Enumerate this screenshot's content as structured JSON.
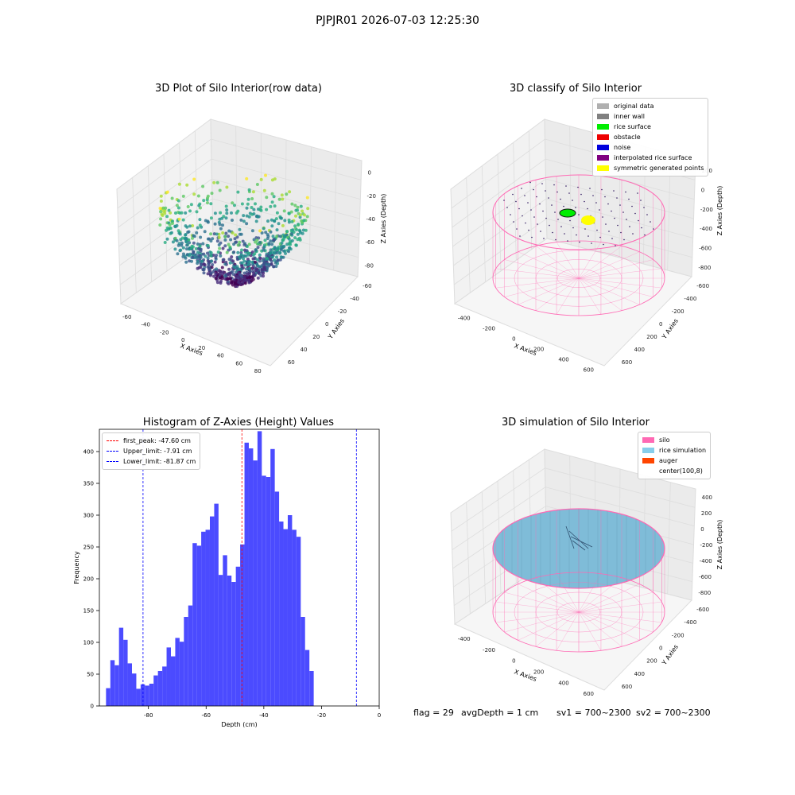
{
  "suptitle": "PJPJR01 2026-07-03 12:25:30",
  "chart_data": [
    {
      "type": "scatter",
      "title": "3D Plot of Silo Interior(row data)",
      "xlabel": "X Axies",
      "ylabel": "Y Axies",
      "zlabel": "Z Axies (Depth)",
      "x_ticks": [
        "-60",
        "-40",
        "-20",
        "0",
        "20",
        "40",
        "60",
        "80"
      ],
      "y_ticks": [
        "60",
        "40",
        "20",
        "0",
        "-20",
        "-40",
        "-60"
      ],
      "z_ticks": [
        "0",
        "-20",
        "-40",
        "-60",
        "-80"
      ],
      "xlim": [
        -70,
        85
      ],
      "ylim": [
        -65,
        65
      ],
      "zlim": [
        -95,
        0
      ],
      "colormap": "viridis",
      "grid": true
    },
    {
      "type": "scatter",
      "title": "3D classify of Silo Interior",
      "xlabel": "X Axies",
      "ylabel": "Y Axies",
      "zlabel": "Z Axies (Depth)",
      "x_ticks": [
        "-400",
        "-200",
        "0",
        "200",
        "400",
        "600"
      ],
      "y_ticks": [
        "600",
        "400",
        "200",
        "0",
        "-200",
        "-400",
        "-600"
      ],
      "z_ticks": [
        "200",
        "0",
        "-200",
        "-400",
        "-600",
        "-800"
      ],
      "legend_position": "top-right",
      "legend": [
        {
          "label": "original data",
          "color": "#b0b0b0"
        },
        {
          "label": "inner wall",
          "color": "#808080"
        },
        {
          "label": "rice surface",
          "color": "#00ee00"
        },
        {
          "label": "obstacle",
          "color": "#ee0000"
        },
        {
          "label": "noise",
          "color": "#0000dd"
        },
        {
          "label": "interpolated rice surface",
          "color": "#800080"
        },
        {
          "label": "symmetric generated points",
          "color": "#ffff00"
        }
      ],
      "grid": true
    },
    {
      "type": "bar",
      "title": "Histogram of Z-Axies (Height) Values",
      "xlabel": "Depth (cm)",
      "ylabel": "Frequency",
      "xlim": [
        -97,
        0
      ],
      "ylim": [
        0,
        435
      ],
      "x_ticks": [
        -80,
        -60,
        -40,
        -20,
        0
      ],
      "y_ticks": [
        0,
        50,
        100,
        150,
        200,
        250,
        300,
        350,
        400
      ],
      "bin_start": -94.7,
      "bin_width": 1.5,
      "values": [
        28,
        72,
        64,
        123,
        104,
        67,
        51,
        27,
        34,
        32,
        35,
        48,
        55,
        62,
        92,
        78,
        107,
        101,
        140,
        158,
        256,
        252,
        274,
        277,
        298,
        318,
        206,
        237,
        205,
        195,
        219,
        254,
        414,
        405,
        386,
        432,
        362,
        360,
        404,
        337,
        290,
        278,
        300,
        277,
        266,
        140,
        88,
        55
      ],
      "bar_color": "#4b4bff",
      "vlines": [
        {
          "label": "first_peak: -47.60 cm",
          "x": -47.6,
          "color": "#ff0000"
        },
        {
          "label": "Upper_limit: -7.91 cm",
          "x": -7.91,
          "color": "#0000ff"
        },
        {
          "label": "Lower_limit: -81.87 cm",
          "x": -81.87,
          "color": "#0000ff"
        }
      ],
      "legend_position": "top-left"
    },
    {
      "type": "scatter",
      "title": "3D simulation of Silo Interior",
      "xlabel": "X Axies",
      "ylabel": "Y Axies",
      "zlabel": "Z Axies (Depth)",
      "x_ticks": [
        "-400",
        "-200",
        "0",
        "200",
        "400",
        "600"
      ],
      "y_ticks": [
        "600",
        "400",
        "200",
        "0",
        "-200",
        "-400",
        "-600"
      ],
      "z_ticks": [
        "400",
        "200",
        "0",
        "-200",
        "-400",
        "-600",
        "-800"
      ],
      "legend_position": "top-right",
      "legend": [
        {
          "label": "silo",
          "color": "#ff69b4"
        },
        {
          "label": "rice simulation",
          "color": "#87ceeb"
        },
        {
          "label": "auger",
          "color": "#ff4500"
        },
        {
          "label": "center(100,8)",
          "color": "#ffffff"
        }
      ],
      "grid": true
    }
  ],
  "footer": {
    "flag": "flag = 29",
    "avg": "avgDepth = 1 cm",
    "sv1": "sv1 = 700~2300",
    "sv2": "sv2 = 700~2300"
  }
}
